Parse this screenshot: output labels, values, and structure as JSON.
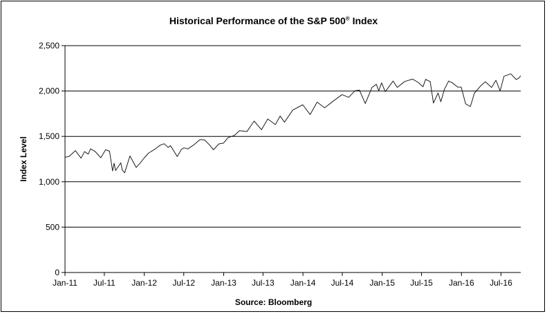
{
  "chart_data": {
    "type": "line",
    "title": "Historical Performance of the S&P 500",
    "title_superscript": "®",
    "title_suffix": " Index",
    "ylabel": "Index Level",
    "xlabel": "",
    "source": "Source:  Bloomberg",
    "ylim": [
      0,
      2500
    ],
    "yticks": [
      0,
      500,
      1000,
      1500,
      2000,
      2500
    ],
    "ytick_labels": [
      "0",
      "500",
      "1,000",
      "1,500",
      "2,000",
      "2,500"
    ],
    "xlim": [
      "2011-01-01",
      "2016-09-30"
    ],
    "xticks": [
      "2011-01-01",
      "2011-07-01",
      "2012-01-01",
      "2012-07-01",
      "2013-01-01",
      "2013-07-01",
      "2014-01-01",
      "2014-07-01",
      "2015-01-01",
      "2015-07-01",
      "2016-01-01",
      "2016-07-01"
    ],
    "xtick_labels": [
      "Jan-11",
      "Jul-11",
      "Jan-12",
      "Jul-12",
      "Jan-13",
      "Jul-13",
      "Jan-14",
      "Jul-14",
      "Jan-15",
      "Jul-15",
      "Jan-16",
      "Jul-16"
    ],
    "grid": "horizontal",
    "line_color": "#1a1a1a",
    "series": [
      {
        "x": [
          "2011-01-03",
          "2011-01-20",
          "2011-02-18",
          "2011-03-16",
          "2011-04-01",
          "2011-04-18",
          "2011-04-29",
          "2011-05-20",
          "2011-06-15",
          "2011-07-07",
          "2011-07-25",
          "2011-08-08",
          "2011-08-15",
          "2011-08-22",
          "2011-09-15",
          "2011-09-22",
          "2011-10-03",
          "2011-10-27",
          "2011-11-25",
          "2011-12-15",
          "2011-12-30",
          "2012-01-20",
          "2012-02-20",
          "2012-03-15",
          "2012-04-02",
          "2012-04-20",
          "2012-05-01",
          "2012-06-01",
          "2012-06-20",
          "2012-07-02",
          "2012-07-20",
          "2012-08-15",
          "2012-09-14",
          "2012-10-05",
          "2012-10-25",
          "2012-11-15",
          "2012-12-10",
          "2012-12-31",
          "2013-01-20",
          "2013-02-20",
          "2013-03-15",
          "2013-04-18",
          "2013-05-21",
          "2013-06-24",
          "2013-07-23",
          "2013-08-27",
          "2013-09-18",
          "2013-10-08",
          "2013-11-15",
          "2013-12-31",
          "2014-02-03",
          "2014-03-07",
          "2014-04-11",
          "2014-05-20",
          "2014-06-30",
          "2014-07-31",
          "2014-08-29",
          "2014-09-18",
          "2014-10-15",
          "2014-11-15",
          "2014-12-05",
          "2014-12-16",
          "2014-12-29",
          "2015-01-15",
          "2015-02-20",
          "2015-03-11",
          "2015-04-15",
          "2015-05-21",
          "2015-06-15",
          "2015-07-08",
          "2015-07-20",
          "2015-08-10",
          "2015-08-25",
          "2015-09-15",
          "2015-09-28",
          "2015-10-15",
          "2015-11-03",
          "2015-11-20",
          "2015-12-15",
          "2015-12-31",
          "2016-01-20",
          "2016-02-11",
          "2016-03-01",
          "2016-03-31",
          "2016-04-20",
          "2016-05-19",
          "2016-06-08",
          "2016-06-27",
          "2016-07-15",
          "2016-08-15",
          "2016-09-09",
          "2016-09-20",
          "2016-09-30"
        ],
        "values": [
          1271,
          1280,
          1343,
          1260,
          1332,
          1305,
          1363,
          1333,
          1265,
          1353,
          1337,
          1119,
          1204,
          1124,
          1209,
          1129,
          1099,
          1284,
          1158,
          1211,
          1258,
          1315,
          1361,
          1404,
          1419,
          1378,
          1397,
          1278,
          1357,
          1374,
          1362,
          1405,
          1465,
          1460,
          1412,
          1353,
          1418,
          1426,
          1485,
          1512,
          1563,
          1553,
          1669,
          1573,
          1692,
          1630,
          1725,
          1656,
          1790,
          1848,
          1741,
          1878,
          1815,
          1888,
          1960,
          1931,
          2003,
          2011,
          1862,
          2039,
          2075,
          2002,
          2090,
          1992,
          2110,
          2040,
          2105,
          2131,
          2096,
          2047,
          2128,
          2104,
          1867,
          1979,
          1882,
          2022,
          2110,
          2090,
          2043,
          2043,
          1859,
          1829,
          1978,
          2060,
          2102,
          2040,
          2119,
          2000,
          2162,
          2190,
          2127,
          2140,
          2168
        ]
      }
    ]
  }
}
